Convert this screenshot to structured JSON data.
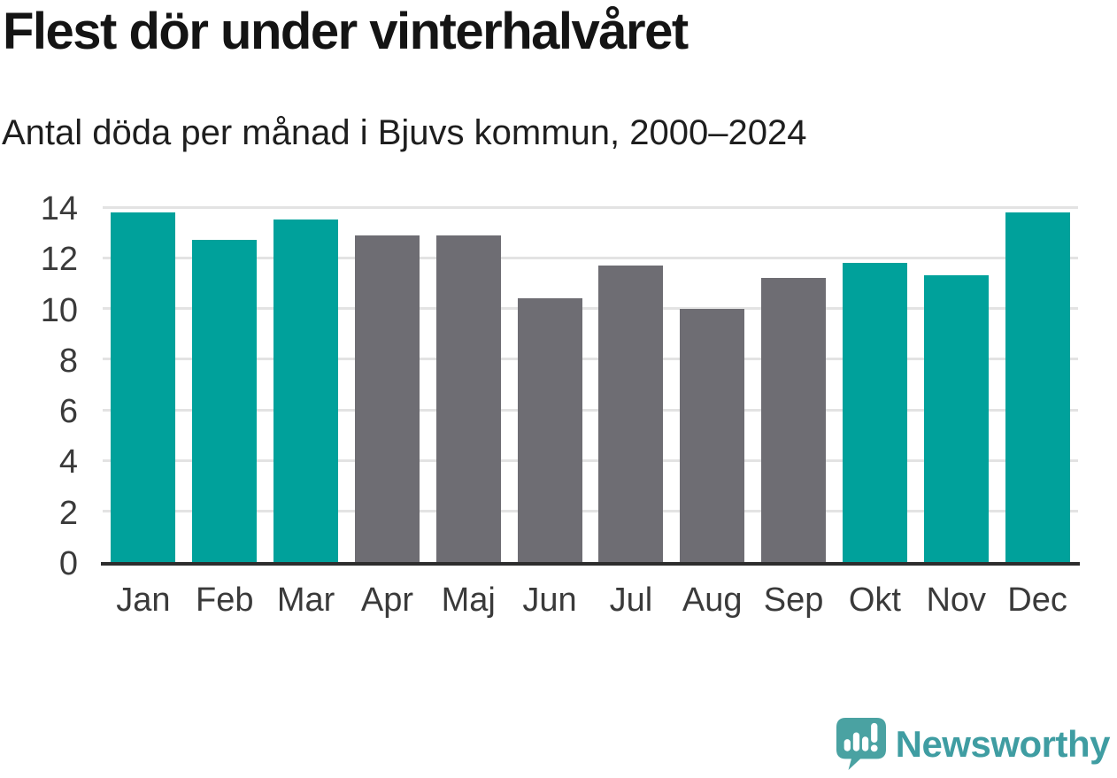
{
  "header": {
    "title": "Flest dör under vinterhalvåret",
    "subtitle": "Antal döda per månad i Bjuvs kommun, 2000–2024"
  },
  "chart_data": {
    "type": "bar",
    "title": "Flest dör under vinterhalvåret",
    "subtitle": "Antal döda per månad i Bjuvs kommun, 2000–2024",
    "categories": [
      "Jan",
      "Feb",
      "Mar",
      "Apr",
      "Maj",
      "Jun",
      "Jul",
      "Aug",
      "Sep",
      "Okt",
      "Nov",
      "Dec"
    ],
    "values": [
      13.8,
      12.7,
      13.5,
      12.9,
      12.9,
      10.4,
      11.7,
      10.0,
      11.2,
      11.8,
      11.3,
      13.8
    ],
    "highlighted": [
      true,
      true,
      true,
      false,
      false,
      false,
      false,
      false,
      false,
      true,
      true,
      true
    ],
    "xlabel": "",
    "ylabel": "",
    "ylim": [
      0,
      14
    ],
    "yticks": [
      0,
      2,
      4,
      6,
      8,
      10,
      12,
      14
    ],
    "grid": true,
    "legend": false,
    "colors": {
      "highlight": "#00a19b",
      "default": "#6e6d73",
      "gridline": "#e3e3e3",
      "axis_line": "#2d2d2d",
      "tick_label": "#3a3a3a"
    }
  },
  "branding": {
    "logo_text": "Newsworthy",
    "logo_icon": "speech-bubble-bar-chart-exclamation",
    "logo_color": "#4aa2a2",
    "logo_text_color": "#3f9da2"
  }
}
